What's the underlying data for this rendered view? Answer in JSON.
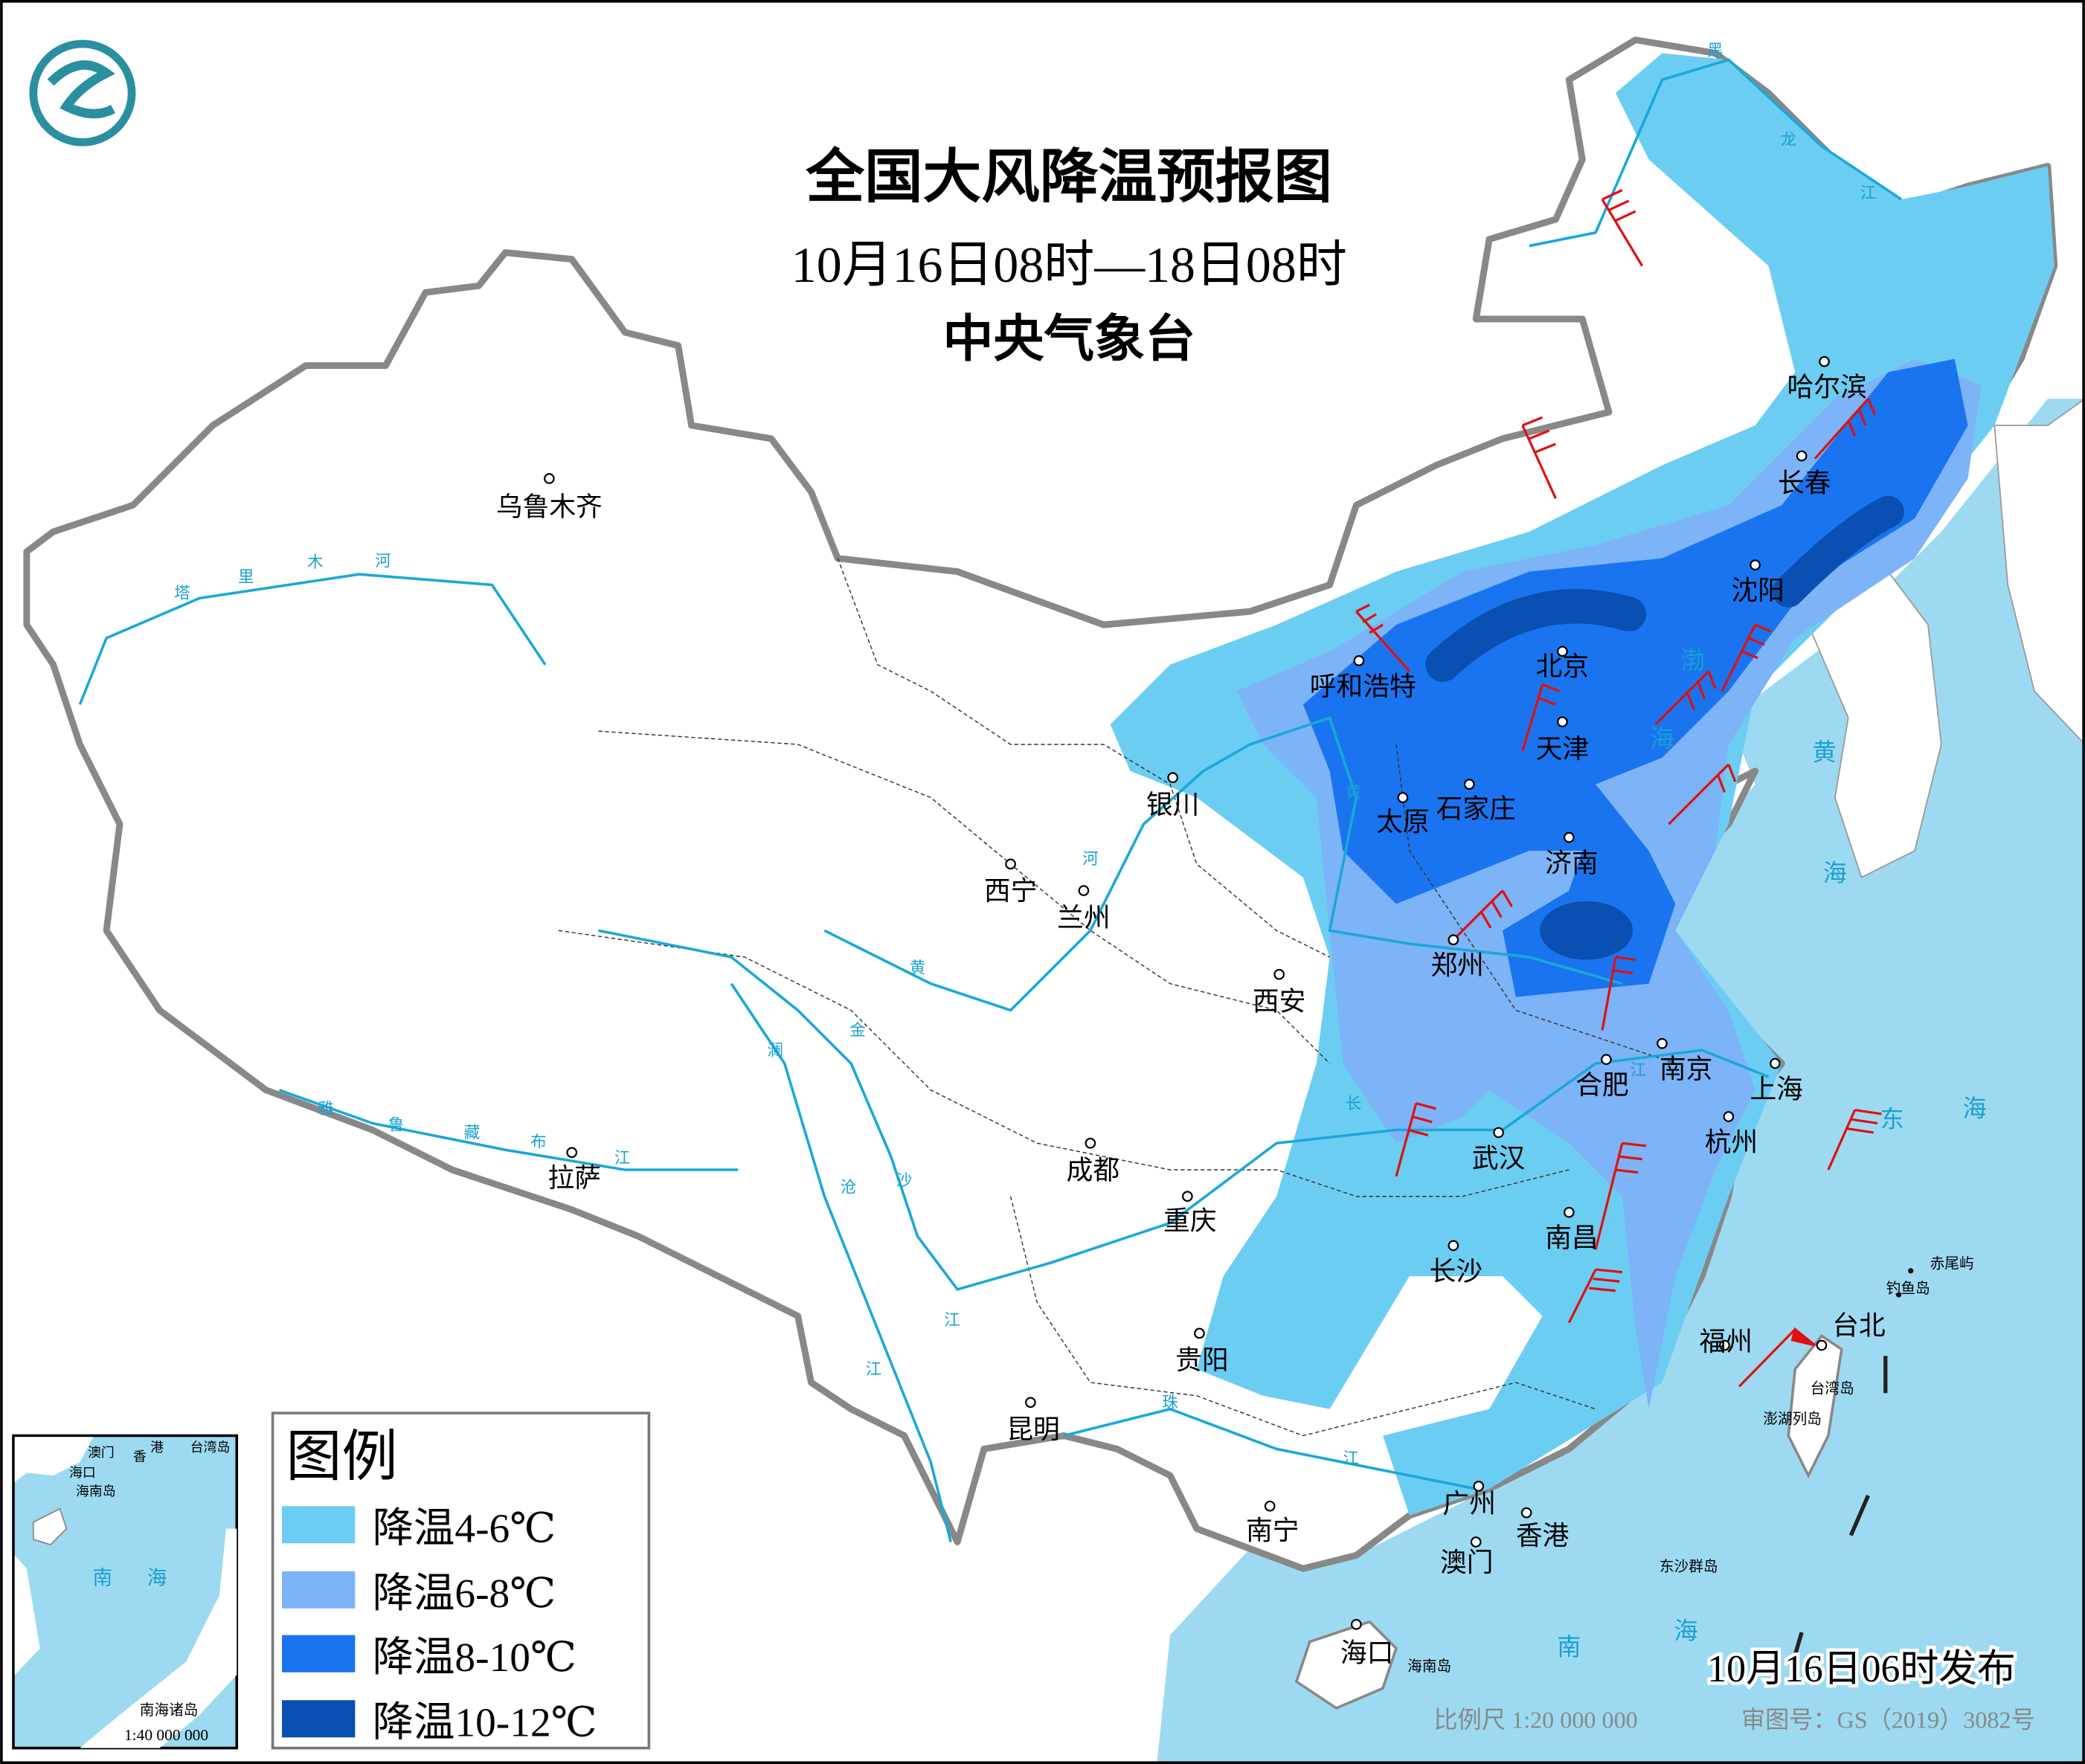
{
  "header": {
    "title": "全国大风降温预报图",
    "subtitle": "10月16日08时—18日08时",
    "agency": "中央气象台"
  },
  "colors": {
    "sea": "#9ddaf2",
    "cool_4_6": "#6ccdf2",
    "cool_6_8": "#7db3f7",
    "cool_8_10": "#1a74f0",
    "cool_10_12": "#0a4fb2",
    "wind_barb": "#e01010",
    "border": "#888888",
    "river": "#1aa8d8"
  },
  "legend": {
    "title": "图例",
    "items": [
      {
        "label": "降温4-6℃",
        "color": "#6ccdf2"
      },
      {
        "label": "降温6-8℃",
        "color": "#7db3f7"
      },
      {
        "label": "降温8-10℃",
        "color": "#1a74f0"
      },
      {
        "label": "降温10-12℃",
        "color": "#0a4fb2"
      }
    ]
  },
  "cities": [
    "乌鲁木齐",
    "拉萨",
    "西宁",
    "兰州",
    "银川",
    "呼和浩特",
    "北京",
    "天津",
    "石家庄",
    "太原",
    "济南",
    "郑州",
    "西安",
    "成都",
    "重庆",
    "武汉",
    "合肥",
    "南京",
    "上海",
    "杭州",
    "长沙",
    "南昌",
    "福州",
    "台北",
    "贵阳",
    "昆明",
    "南宁",
    "广州",
    "香港",
    "澳门",
    "海口",
    "哈尔滨",
    "长春",
    "沈阳"
  ],
  "rivers": {
    "tarim": [
      "塔",
      "里",
      "木",
      "河"
    ],
    "yarlung": [
      "雅",
      "鲁",
      "藏",
      "布",
      "江"
    ],
    "yellow": [
      "黄",
      "河",
      "黄"
    ],
    "jinsha": [
      "金",
      "沙"
    ],
    "lancang": [
      "澜",
      "沧",
      "江"
    ],
    "jiang_sw": "江",
    "yangtze": [
      "长",
      "江"
    ],
    "pearl": [
      "珠",
      "江"
    ],
    "heilong": [
      "黑",
      "龙",
      "江"
    ]
  },
  "seas": {
    "bohai": [
      "渤",
      "海"
    ],
    "yellow": [
      "黄",
      "海"
    ],
    "east": [
      "东",
      "海"
    ],
    "south": [
      "南",
      "海"
    ]
  },
  "islands": {
    "chiwei": "赤尾屿",
    "diaoyu": "钓鱼岛",
    "taiwan": "台湾岛",
    "penghu": "澎湖列岛",
    "dongsha": "东沙群岛",
    "hainan": "海南岛"
  },
  "footer": {
    "issued": "10月16日06时发布",
    "scale": "比例尺 1:20 000 000",
    "map_number": "审图号：GS（2019）3082号"
  },
  "inset": {
    "labels": [
      "澳门",
      "香",
      "港",
      "台湾岛",
      "海口",
      "海南岛",
      "南",
      "海",
      "南海诸岛"
    ],
    "scale": "1:40 000 000"
  }
}
